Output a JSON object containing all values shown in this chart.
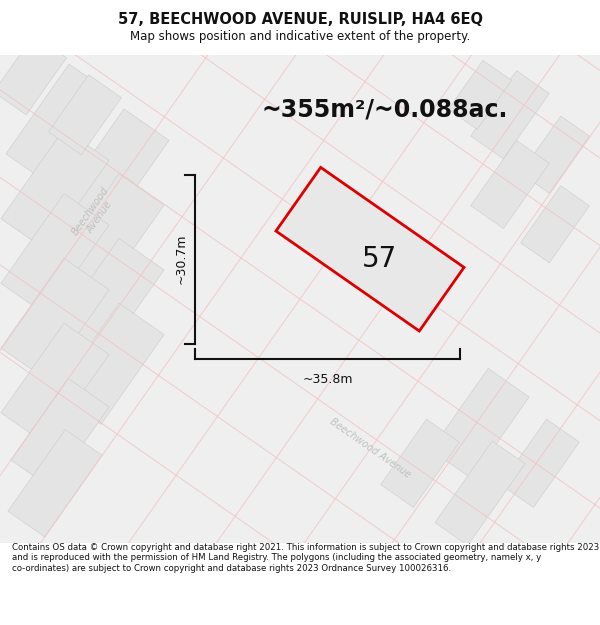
{
  "title": "57, BEECHWOOD AVENUE, RUISLIP, HA4 6EQ",
  "subtitle": "Map shows position and indicative extent of the property.",
  "area_text": "~355m²/~0.088ac.",
  "house_number": "57",
  "dim_width": "~35.8m",
  "dim_height": "~30.7m",
  "footer": "Contains OS data © Crown copyright and database right 2021. This information is subject to Crown copyright and database rights 2023 and is reproduced with the permission of HM Land Registry. The polygons (including the associated geometry, namely x, y co-ordinates) are subject to Crown copyright and database rights 2023 Ordnance Survey 100026316.",
  "bg_color": "#efefef",
  "block_light": "#e4e4e4",
  "block_dark": "#d8d8d8",
  "road_pink": "#f2c4c4",
  "property_fill": "#e8e8e8",
  "property_outline": "#dd0000",
  "street_label_color": "#c0c0c0",
  "title_fontsize": 10.5,
  "subtitle_fontsize": 8.5,
  "area_fontsize": 17,
  "number_fontsize": 20,
  "dim_fontsize": 9,
  "footer_fontsize": 6.2
}
